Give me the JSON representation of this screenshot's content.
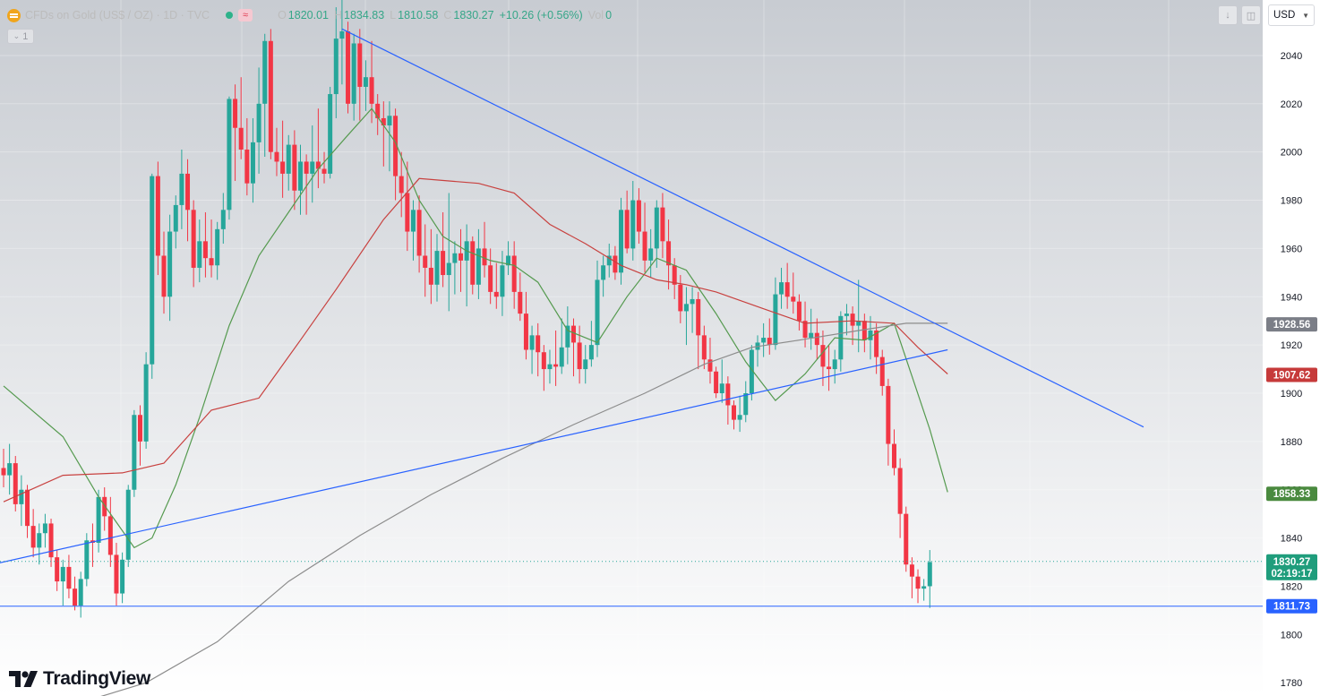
{
  "legend": {
    "symbol": "CFDs on Gold (US$ / OZ) · 1D · TVC",
    "ohlc": [
      {
        "k": "O",
        "v": "1820.01"
      },
      {
        "k": "H",
        "v": "1834.83"
      },
      {
        "k": "L",
        "v": "1810.58"
      },
      {
        "k": "C",
        "v": "1830.27"
      },
      {
        "k": "",
        "v": "+10.26 (+0.56%)"
      },
      {
        "k": "Vol",
        "v": "0"
      }
    ],
    "collapse_count": "1"
  },
  "currency": "USD",
  "logo_text": "TradingView",
  "colors": {
    "up": "#26a69a",
    "down": "#f23645",
    "trendline": "#2962ff",
    "ma_green": "#559a4f",
    "ma_red": "#c8413f",
    "ma_gray": "#8c8c8c"
  },
  "chart_data": {
    "type": "candlestick",
    "y_ticks": [
      1780,
      1800,
      1820,
      1840,
      1860,
      1880,
      1900,
      1920,
      1940,
      1960,
      1980,
      2000,
      2020,
      2040
    ],
    "ylim": [
      1774.5,
      2063
    ],
    "candles": [
      [
        1869,
        1877,
        1861,
        1866
      ],
      [
        1866,
        1879,
        1858,
        1871
      ],
      [
        1871,
        1874,
        1851,
        1854
      ],
      [
        1854,
        1866,
        1845,
        1860
      ],
      [
        1860,
        1862,
        1840,
        1845
      ],
      [
        1845,
        1852,
        1832,
        1836
      ],
      [
        1836,
        1846,
        1829,
        1842
      ],
      [
        1842,
        1850,
        1836,
        1846
      ],
      [
        1846,
        1848,
        1828,
        1832
      ],
      [
        1832,
        1835,
        1818,
        1822
      ],
      [
        1822,
        1831,
        1812,
        1828
      ],
      [
        1828,
        1833,
        1815,
        1819
      ],
      [
        1819,
        1824,
        1810,
        1812
      ],
      [
        1812,
        1826,
        1807,
        1823
      ],
      [
        1823,
        1842,
        1820,
        1839
      ],
      [
        1839,
        1846,
        1828,
        1838
      ],
      [
        1838,
        1860,
        1834,
        1857
      ],
      [
        1857,
        1861,
        1843,
        1849
      ],
      [
        1849,
        1857,
        1828,
        1833
      ],
      [
        1833,
        1838,
        1812,
        1817
      ],
      [
        1817,
        1834,
        1813,
        1831
      ],
      [
        1831,
        1862,
        1828,
        1860
      ],
      [
        1860,
        1893,
        1857,
        1891
      ],
      [
        1891,
        1895,
        1870,
        1880
      ],
      [
        1880,
        1917,
        1877,
        1912
      ],
      [
        1912,
        1991,
        1906,
        1990
      ],
      [
        1990,
        1996,
        1949,
        1957
      ],
      [
        1957,
        1967,
        1933,
        1940
      ],
      [
        1940,
        1974,
        1930,
        1967
      ],
      [
        1967,
        1982,
        1960,
        1978
      ],
      [
        1978,
        2001,
        1968,
        1991
      ],
      [
        1991,
        1997,
        1963,
        1976
      ],
      [
        1976,
        1980,
        1944,
        1952
      ],
      [
        1952,
        1972,
        1946,
        1963
      ],
      [
        1963,
        1975,
        1948,
        1956
      ],
      [
        1956,
        1972,
        1948,
        1953
      ],
      [
        1953,
        1971,
        1947,
        1968
      ],
      [
        1968,
        1983,
        1962,
        1976
      ],
      [
        1976,
        2023,
        1972,
        2022
      ],
      [
        2022,
        2028,
        1988,
        2010
      ],
      [
        2010,
        2031,
        1997,
        2001
      ],
      [
        2001,
        2014,
        1982,
        1987
      ],
      [
        1987,
        2014,
        1979,
        2004
      ],
      [
        2004,
        2035,
        1991,
        2020
      ],
      [
        2020,
        2049,
        1998,
        2046
      ],
      [
        2046,
        2051,
        1997,
        2000
      ],
      [
        2000,
        2010,
        1990,
        1996
      ],
      [
        1996,
        2013,
        1981,
        1991
      ],
      [
        1991,
        2007,
        1984,
        2003
      ],
      [
        2003,
        2009,
        1976,
        1984
      ],
      [
        1984,
        2003,
        1974,
        1996
      ],
      [
        1996,
        1999,
        1974,
        1991
      ],
      [
        1991,
        2011,
        1979,
        1996
      ],
      [
        1996,
        2018,
        1985,
        1993
      ],
      [
        1993,
        2000,
        1987,
        1991
      ],
      [
        1991,
        2027,
        1989,
        2024
      ],
      [
        2024,
        2060,
        2014,
        2047
      ],
      [
        2047,
        2063,
        2028,
        2050
      ],
      [
        2050,
        2054,
        2016,
        2020
      ],
      [
        2020,
        2049,
        2013,
        2045
      ],
      [
        2045,
        2051,
        2013,
        2027
      ],
      [
        2027,
        2038,
        2017,
        2031
      ],
      [
        2031,
        2046,
        2012,
        2020
      ],
      [
        2020,
        2024,
        2007,
        2014
      ],
      [
        2014,
        2021,
        1994,
        2011
      ],
      [
        2011,
        2021,
        1992,
        2015
      ],
      [
        2015,
        2018,
        1980,
        1990
      ],
      [
        1990,
        2000,
        1973,
        1983
      ],
      [
        1983,
        1996,
        1959,
        1967
      ],
      [
        1967,
        1980,
        1955,
        1976
      ],
      [
        1976,
        1982,
        1950,
        1957
      ],
      [
        1957,
        1970,
        1940,
        1952
      ],
      [
        1952,
        1968,
        1937,
        1945
      ],
      [
        1945,
        1966,
        1938,
        1959
      ],
      [
        1959,
        1975,
        1944,
        1949
      ],
      [
        1949,
        1983,
        1934,
        1954
      ],
      [
        1954,
        1963,
        1941,
        1958
      ],
      [
        1958,
        1968,
        1942,
        1955
      ],
      [
        1955,
        1970,
        1936,
        1963
      ],
      [
        1963,
        1965,
        1941,
        1945
      ],
      [
        1945,
        1968,
        1939,
        1960
      ],
      [
        1960,
        1971,
        1948,
        1953
      ],
      [
        1953,
        1960,
        1937,
        1942
      ],
      [
        1942,
        1954,
        1935,
        1940
      ],
      [
        1940,
        1959,
        1932,
        1953
      ],
      [
        1953,
        1963,
        1949,
        1957
      ],
      [
        1957,
        1963,
        1935,
        1942
      ],
      [
        1942,
        1950,
        1930,
        1933
      ],
      [
        1933,
        1942,
        1914,
        1918
      ],
      [
        1918,
        1928,
        1908,
        1924
      ],
      [
        1924,
        1929,
        1907,
        1917
      ],
      [
        1917,
        1920,
        1901,
        1910
      ],
      [
        1910,
        1918,
        1904,
        1912
      ],
      [
        1912,
        1926,
        1903,
        1911
      ],
      [
        1911,
        1931,
        1908,
        1919
      ],
      [
        1919,
        1936,
        1912,
        1928
      ],
      [
        1928,
        1931,
        1907,
        1921
      ],
      [
        1921,
        1928,
        1904,
        1910
      ],
      [
        1910,
        1920,
        1904,
        1914
      ],
      [
        1914,
        1930,
        1911,
        1920
      ],
      [
        1920,
        1955,
        1915,
        1947
      ],
      [
        1947,
        1957,
        1940,
        1953
      ],
      [
        1953,
        1962,
        1948,
        1957
      ],
      [
        1957,
        1961,
        1947,
        1950
      ],
      [
        1950,
        1981,
        1945,
        1976
      ],
      [
        1976,
        1984,
        1958,
        1960
      ],
      [
        1960,
        1988,
        1955,
        1980
      ],
      [
        1980,
        1985,
        1962,
        1967
      ],
      [
        1967,
        1979,
        1950,
        1955
      ],
      [
        1955,
        1968,
        1948,
        1960
      ],
      [
        1960,
        1980,
        1952,
        1977
      ],
      [
        1977,
        1983,
        1956,
        1963
      ],
      [
        1963,
        1972,
        1943,
        1953
      ],
      [
        1953,
        1956,
        1939,
        1945
      ],
      [
        1945,
        1949,
        1929,
        1934
      ],
      [
        1934,
        1944,
        1920,
        1937
      ],
      [
        1937,
        1944,
        1925,
        1939
      ],
      [
        1939,
        1942,
        1910,
        1924
      ],
      [
        1924,
        1928,
        1910,
        1914
      ],
      [
        1914,
        1923,
        1904,
        1909
      ],
      [
        1909,
        1911,
        1898,
        1900
      ],
      [
        1900,
        1914,
        1896,
        1904
      ],
      [
        1904,
        1907,
        1887,
        1895
      ],
      [
        1895,
        1897,
        1885,
        1889
      ],
      [
        1889,
        1899,
        1884,
        1891
      ],
      [
        1891,
        1905,
        1888,
        1900
      ],
      [
        1900,
        1920,
        1897,
        1918
      ],
      [
        1918,
        1924,
        1911,
        1921
      ],
      [
        1921,
        1929,
        1915,
        1923
      ],
      [
        1923,
        1931,
        1916,
        1920
      ],
      [
        1920,
        1948,
        1918,
        1941
      ],
      [
        1941,
        1952,
        1935,
        1946
      ],
      [
        1946,
        1954,
        1935,
        1940
      ],
      [
        1940,
        1950,
        1933,
        1938
      ],
      [
        1938,
        1941,
        1926,
        1930
      ],
      [
        1930,
        1938,
        1919,
        1923
      ],
      [
        1923,
        1935,
        1918,
        1925
      ],
      [
        1925,
        1931,
        1914,
        1920
      ],
      [
        1920,
        1926,
        1903,
        1911
      ],
      [
        1911,
        1920,
        1901,
        1910
      ],
      [
        1910,
        1918,
        1904,
        1914
      ],
      [
        1914,
        1934,
        1909,
        1932
      ],
      [
        1932,
        1937,
        1924,
        1933
      ],
      [
        1933,
        1936,
        1920,
        1928
      ],
      [
        1928,
        1947,
        1917,
        1930
      ],
      [
        1930,
        1933,
        1917,
        1922
      ],
      [
        1922,
        1932,
        1914,
        1926
      ],
      [
        1926,
        1929,
        1908,
        1915
      ],
      [
        1915,
        1918,
        1899,
        1903
      ],
      [
        1903,
        1906,
        1870,
        1879
      ],
      [
        1879,
        1885,
        1866,
        1869
      ],
      [
        1869,
        1873,
        1840,
        1850
      ],
      [
        1850,
        1853,
        1826,
        1829
      ],
      [
        1829,
        1832,
        1815,
        1824
      ],
      [
        1824,
        1827,
        1813,
        1819
      ],
      [
        1819,
        1823,
        1814,
        1820
      ],
      [
        1820,
        1835,
        1811,
        1830
      ]
    ],
    "series": [
      {
        "name": "",
        "color": "#559a4f",
        "points": [
          [
            0,
            1903
          ],
          [
            10,
            1882
          ],
          [
            16,
            1857
          ],
          [
            22,
            1836
          ],
          [
            25,
            1840
          ],
          [
            29,
            1862
          ],
          [
            33,
            1890
          ],
          [
            38,
            1928
          ],
          [
            43,
            1957
          ],
          [
            48,
            1975
          ],
          [
            53,
            1993
          ],
          [
            58,
            2007
          ],
          [
            62,
            2018
          ],
          [
            66,
            2004
          ],
          [
            70,
            1980
          ],
          [
            74,
            1965
          ],
          [
            78,
            1959
          ],
          [
            82,
            1955
          ],
          [
            86,
            1953
          ],
          [
            90,
            1946
          ],
          [
            95,
            1926
          ],
          [
            100,
            1921
          ],
          [
            105,
            1940
          ],
          [
            110,
            1956
          ],
          [
            115,
            1951
          ],
          [
            120,
            1933
          ],
          [
            125,
            1913
          ],
          [
            130,
            1897
          ],
          [
            135,
            1908
          ],
          [
            140,
            1923
          ],
          [
            145,
            1922
          ],
          [
            150,
            1929
          ],
          [
            153,
            1907
          ],
          [
            156,
            1885
          ],
          [
            159,
            1859
          ]
        ]
      },
      {
        "name": "",
        "color": "#c8413f",
        "points": [
          [
            0,
            1855
          ],
          [
            10,
            1866
          ],
          [
            20,
            1867
          ],
          [
            27,
            1871
          ],
          [
            35,
            1893
          ],
          [
            43,
            1898
          ],
          [
            50,
            1922
          ],
          [
            56,
            1943
          ],
          [
            64,
            1972
          ],
          [
            70,
            1989
          ],
          [
            75,
            1988
          ],
          [
            80,
            1987
          ],
          [
            86,
            1983
          ],
          [
            92,
            1970
          ],
          [
            98,
            1962
          ],
          [
            104,
            1953
          ],
          [
            110,
            1947
          ],
          [
            115,
            1945
          ],
          [
            120,
            1942
          ],
          [
            128,
            1935
          ],
          [
            135,
            1929
          ],
          [
            143,
            1930
          ],
          [
            150,
            1929
          ],
          [
            154,
            1919
          ],
          [
            159,
            1908
          ]
        ]
      },
      {
        "name": "",
        "color": "#8c8c8c",
        "points": [
          [
            16,
            1774
          ],
          [
            24,
            1780
          ],
          [
            36,
            1797
          ],
          [
            48,
            1822
          ],
          [
            60,
            1841
          ],
          [
            72,
            1858
          ],
          [
            84,
            1873
          ],
          [
            96,
            1887
          ],
          [
            108,
            1900
          ],
          [
            118,
            1912
          ],
          [
            126,
            1919
          ],
          [
            134,
            1922
          ],
          [
            144,
            1926
          ],
          [
            152,
            1929
          ],
          [
            159,
            1929
          ]
        ]
      }
    ],
    "trendlines": [
      {
        "from": [
          -58,
          1798
        ],
        "to": [
          159,
          1918
        ],
        "color": "#2962ff"
      },
      {
        "from": [
          57,
          2051
        ],
        "to": [
          192,
          1886
        ],
        "color": "#2962ff"
      }
    ],
    "hlines": [
      {
        "value": 1811.73,
        "label": "1811.73",
        "color": "#2962ff",
        "style": "solid"
      },
      {
        "value": 1830.27,
        "label": "1830.27",
        "color": "#26a69a",
        "style": "dotted"
      }
    ],
    "price_labels": [
      {
        "value": 1928.56,
        "text": "1928.56",
        "color": "#7b7e87"
      },
      {
        "value": 1907.62,
        "text": "1907.62",
        "color": "#c63a3a"
      },
      {
        "value": 1858.33,
        "text": "1858.33",
        "color": "#4a8a3f"
      },
      {
        "value": 1830.27,
        "text": "1830.27",
        "sub": "02:19:17",
        "color": "#1f9d7c"
      },
      {
        "value": 1811.73,
        "text": "1811.73",
        "color": "#2962ff"
      }
    ]
  }
}
